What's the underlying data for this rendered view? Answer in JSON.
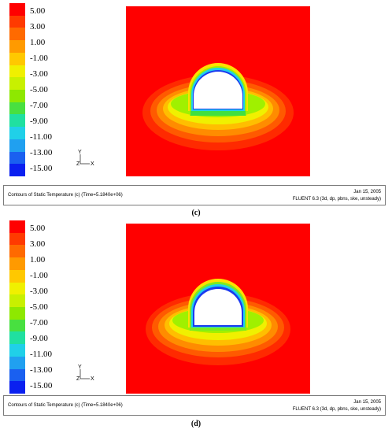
{
  "legend": {
    "colors": [
      "#ff0000",
      "#ff3a00",
      "#ff6a00",
      "#ff9a00",
      "#ffc800",
      "#f0f000",
      "#c8f000",
      "#8ee800",
      "#48e040",
      "#20e0a0",
      "#20d0e8",
      "#20a0f0",
      "#1a60f0",
      "#0a20f0"
    ],
    "labels": [
      "5.00",
      "3.00",
      "1.00",
      "-1.00",
      "-3.00",
      "-5.00",
      "-7.00",
      "-9.00",
      "-11.00",
      "-13.00",
      "-15.00"
    ]
  },
  "axes_triad": {
    "y_label": "Y",
    "z_label": "Z",
    "x_label": "X"
  },
  "panels": [
    {
      "footer_title": "Contours of Static Temperature (c)  (Time=5.1840e+06)",
      "footer_date": "Jan 15, 2005",
      "footer_solver": "FLUENT 6.3 (3d, dp, pbns, ske, unsteady)",
      "caption": "(c)"
    },
    {
      "footer_title": "Contours of Static Temperature (c)  (Time=5.1840e+06)",
      "footer_date": "Jan 15, 2005",
      "footer_solver": "FLUENT 6.3 (3d, dp, pbns, ske, unsteady)",
      "caption": "(d)"
    }
  ]
}
